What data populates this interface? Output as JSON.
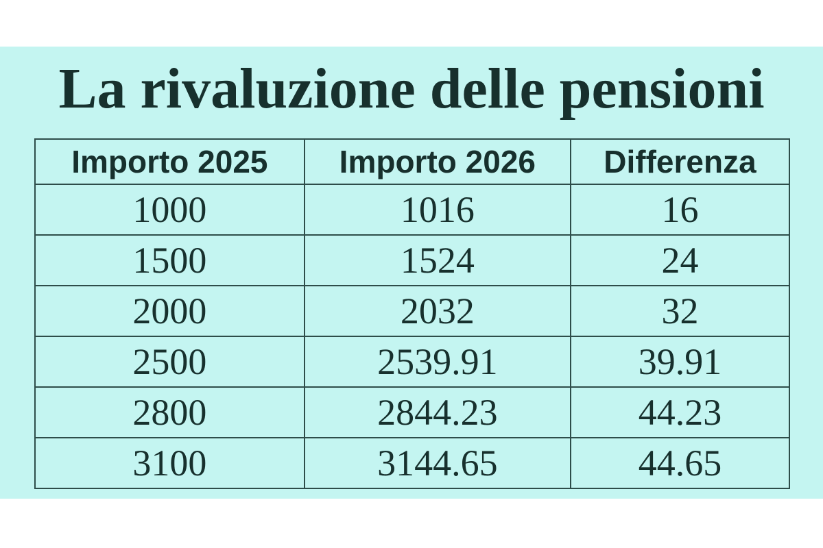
{
  "chart_data": {
    "type": "table",
    "title": "La rivaluzione delle pensioni",
    "columns": [
      "Importo 2025",
      "Importo 2026",
      "Differenza"
    ],
    "rows": [
      [
        "1000",
        "1016",
        "16"
      ],
      [
        "1500",
        "1524",
        "24"
      ],
      [
        "2000",
        "2032",
        "32"
      ],
      [
        "2500",
        "2539.91",
        "39.91"
      ],
      [
        "2800",
        "2844.23",
        "44.23"
      ],
      [
        "3100",
        "3144.65",
        "44.65"
      ]
    ],
    "legend": "none",
    "grid": "full-cell-borders"
  },
  "colors": {
    "page_bg": "#ffffff",
    "panel_bg": "#c4f5f1",
    "border": "#2e4d4a",
    "text": "#17302d"
  }
}
